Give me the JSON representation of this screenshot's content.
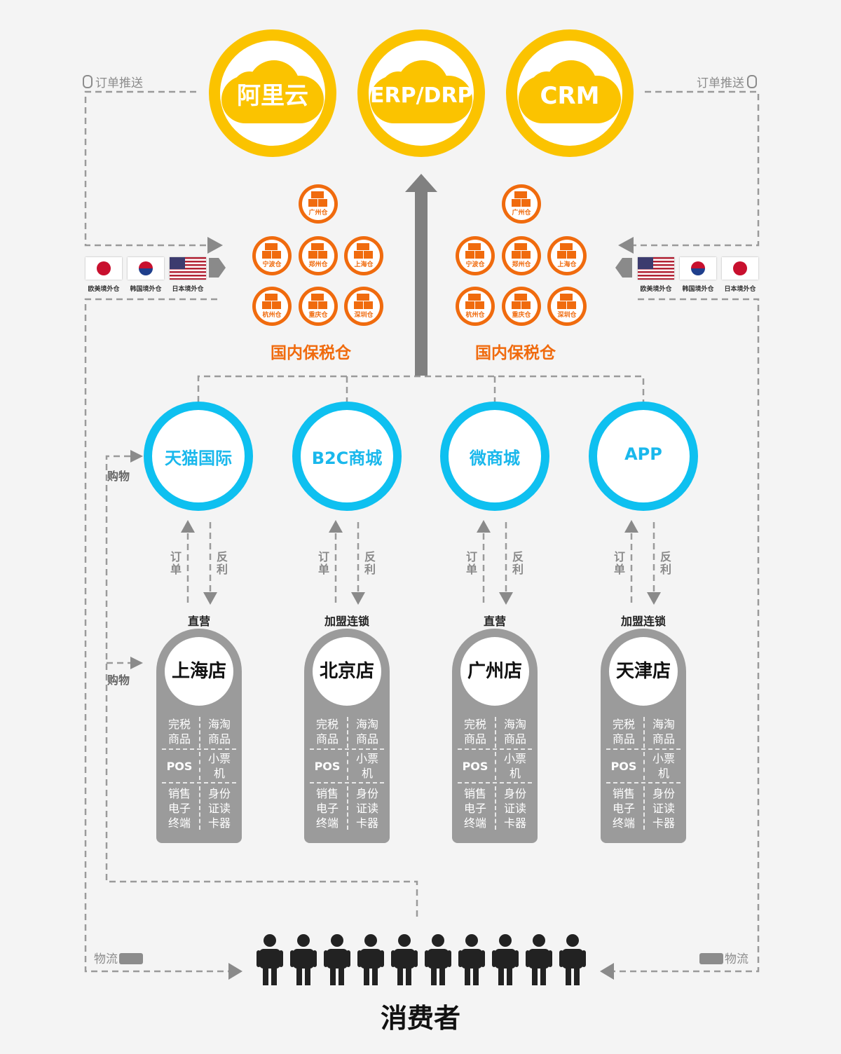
{
  "systems": [
    {
      "label": "阿里云"
    },
    {
      "label": "ERP/DRP"
    },
    {
      "label": "CRM"
    }
  ],
  "order_push": {
    "left": "订单推送",
    "right": "订单推送"
  },
  "warehouses_left": [
    "广州仓",
    "宁波仓",
    "郑州仓",
    "上海仓",
    "杭州仓",
    "重庆仓",
    "深圳仓"
  ],
  "warehouses_right": [
    "广州仓",
    "宁波仓",
    "郑州仓",
    "上海仓",
    "杭州仓",
    "重庆仓",
    "深圳仓"
  ],
  "bonded_label": "国内保税仓",
  "overseas_left": [
    "欧美境外仓",
    "韩国境外仓",
    "日本境外仓"
  ],
  "overseas_right": [
    "欧美境外仓",
    "韩国境外仓",
    "日本境外仓"
  ],
  "platforms": [
    {
      "label": "天猫国际"
    },
    {
      "label": "B2C商城"
    },
    {
      "label": "微商城"
    },
    {
      "label": "APP"
    }
  ],
  "flow": {
    "order": "订单",
    "rebate": "反利",
    "shopping": "购物",
    "logistics": "物流"
  },
  "stores": [
    {
      "type": "直营",
      "name": "上海店"
    },
    {
      "type": "加盟连锁",
      "name": "北京店"
    },
    {
      "type": "直营",
      "name": "广州店"
    },
    {
      "type": "加盟连锁",
      "name": "天津店"
    }
  ],
  "store_cells": {
    "r1l": "完税商品",
    "r1r": "海淘商品",
    "r2l": "POS",
    "r2r": "小票机",
    "r3l": "销售电子终端",
    "r3r": "身份证读卡器"
  },
  "consumer": "消费者",
  "colors": {
    "yellow": "#fbc300",
    "orange": "#f06b0e",
    "blue": "#0ec0f0",
    "grey": "#9b9b9b"
  }
}
